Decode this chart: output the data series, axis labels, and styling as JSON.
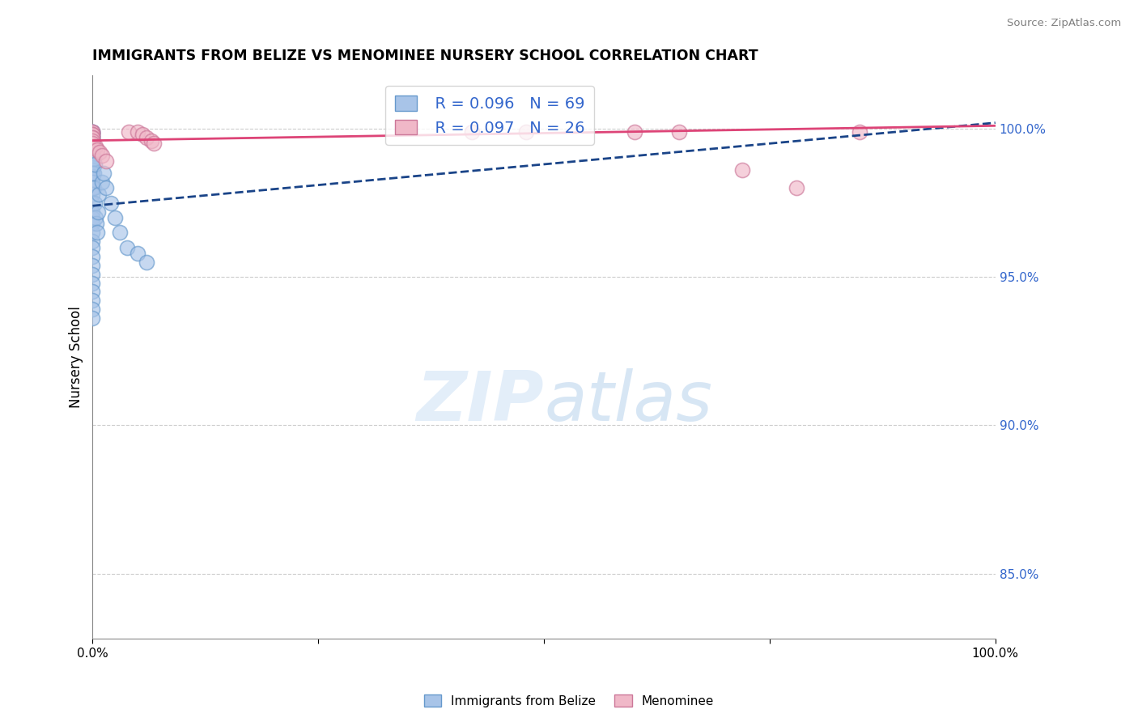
{
  "title": "IMMIGRANTS FROM BELIZE VS MENOMINEE NURSERY SCHOOL CORRELATION CHART",
  "source": "Source: ZipAtlas.com",
  "ylabel": "Nursery School",
  "right_yticks": [
    0.85,
    0.9,
    0.95,
    1.0
  ],
  "right_yticklabels": [
    "85.0%",
    "90.0%",
    "95.0%",
    "100.0%"
  ],
  "legend_blue_r": "R = 0.096",
  "legend_blue_n": "N = 69",
  "legend_pink_r": "R = 0.097",
  "legend_pink_n": "N = 26",
  "legend_blue_label": "Immigrants from Belize",
  "legend_pink_label": "Menominee",
  "blue_color": "#a8c4e8",
  "blue_edge_color": "#6699cc",
  "blue_line_color": "#1a4488",
  "pink_color": "#f0b8c8",
  "pink_edge_color": "#cc7799",
  "pink_line_color": "#dd4477",
  "background_color": "#ffffff",
  "grid_color": "#cccccc",
  "text_color": "#3366cc",
  "xlim": [
    0.0,
    1.0
  ],
  "ylim": [
    0.828,
    1.018
  ],
  "blue_scatter_x": [
    0.0,
    0.0,
    0.0,
    0.0,
    0.0,
    0.0,
    0.0,
    0.0,
    0.0,
    0.0,
    0.0,
    0.0,
    0.0,
    0.0,
    0.0,
    0.0,
    0.0,
    0.0,
    0.0,
    0.0,
    0.0,
    0.0,
    0.0,
    0.0,
    0.0,
    0.0,
    0.0,
    0.0,
    0.0,
    0.0,
    0.0,
    0.0,
    0.0,
    0.0,
    0.0,
    0.0,
    0.0,
    0.0,
    0.0,
    0.0,
    0.0,
    0.0,
    0.0,
    0.0,
    0.0,
    0.0,
    0.0,
    0.0,
    0.0,
    0.0,
    0.001,
    0.001,
    0.001,
    0.002,
    0.002,
    0.003,
    0.004,
    0.005,
    0.006,
    0.007,
    0.01,
    0.012,
    0.015,
    0.02,
    0.025,
    0.03,
    0.038,
    0.05,
    0.06
  ],
  "blue_scatter_y": [
    0.999,
    0.999,
    0.999,
    0.998,
    0.998,
    0.997,
    0.997,
    0.997,
    0.996,
    0.996,
    0.996,
    0.995,
    0.995,
    0.995,
    0.994,
    0.994,
    0.993,
    0.993,
    0.992,
    0.992,
    0.991,
    0.991,
    0.99,
    0.99,
    0.989,
    0.989,
    0.988,
    0.987,
    0.986,
    0.985,
    0.984,
    0.983,
    0.982,
    0.98,
    0.978,
    0.975,
    0.972,
    0.97,
    0.968,
    0.965,
    0.962,
    0.96,
    0.957,
    0.954,
    0.951,
    0.948,
    0.945,
    0.942,
    0.939,
    0.936,
    0.99,
    0.985,
    0.98,
    0.988,
    0.975,
    0.97,
    0.968,
    0.965,
    0.972,
    0.978,
    0.982,
    0.985,
    0.98,
    0.975,
    0.97,
    0.965,
    0.96,
    0.958,
    0.955
  ],
  "pink_scatter_x": [
    0.0,
    0.0,
    0.0,
    0.0,
    0.0,
    0.0,
    0.0,
    0.0,
    0.003,
    0.005,
    0.008,
    0.01,
    0.015,
    0.04,
    0.05,
    0.055,
    0.06,
    0.065,
    0.068,
    0.42,
    0.48,
    0.6,
    0.65,
    0.72,
    0.78,
    0.85
  ],
  "pink_scatter_y": [
    0.999,
    0.999,
    0.998,
    0.998,
    0.997,
    0.997,
    0.996,
    0.995,
    0.994,
    0.993,
    0.992,
    0.991,
    0.989,
    0.999,
    0.999,
    0.998,
    0.997,
    0.996,
    0.995,
    0.999,
    0.999,
    0.999,
    0.999,
    0.986,
    0.98,
    0.999
  ],
  "blue_trendline_x": [
    0.0,
    1.0
  ],
  "blue_trendline_y": [
    0.974,
    1.002
  ],
  "blue_trendline_style": "--",
  "pink_trendline_x": [
    0.0,
    1.0
  ],
  "pink_trendline_y": [
    0.996,
    1.001
  ],
  "pink_trendline_style": "-"
}
